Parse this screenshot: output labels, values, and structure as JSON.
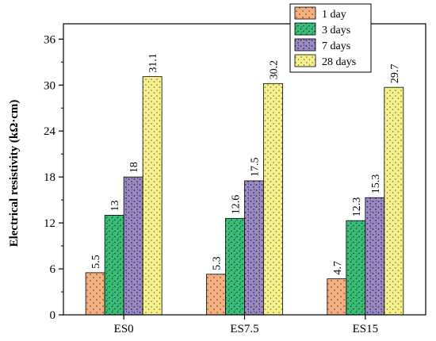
{
  "chart_data": {
    "type": "bar",
    "categories": [
      "ES0",
      "ES7.5",
      "ES15"
    ],
    "series": [
      {
        "name": "1 day",
        "values": [
          5.5,
          5.3,
          4.7
        ],
        "color": "#f2b183",
        "pattern": "dots"
      },
      {
        "name": "3 days",
        "values": [
          13,
          12.6,
          12.3
        ],
        "color": "#3dbd7a",
        "pattern": "dots"
      },
      {
        "name": "7 days",
        "values": [
          18,
          17.5,
          15.3
        ],
        "color": "#9b8bc2",
        "pattern": "dots"
      },
      {
        "name": "28 days",
        "values": [
          31.1,
          30.2,
          29.7
        ],
        "color": "#f6f08e",
        "pattern": "dots"
      }
    ],
    "value_labels": [
      [
        "5.5",
        "5.3",
        "4.7"
      ],
      [
        "13",
        "12.6",
        "12.3"
      ],
      [
        "18",
        "17.5",
        "15.3"
      ],
      [
        "31.1",
        "30.2",
        "29.7"
      ]
    ],
    "ylabel": "Electrical resistivity (kΩ·cm)",
    "xlabel": "",
    "ylim": [
      0,
      38
    ],
    "yticks": [
      0,
      6,
      12,
      18,
      24,
      30,
      36
    ],
    "grid": false,
    "legend_position": "top-right"
  }
}
